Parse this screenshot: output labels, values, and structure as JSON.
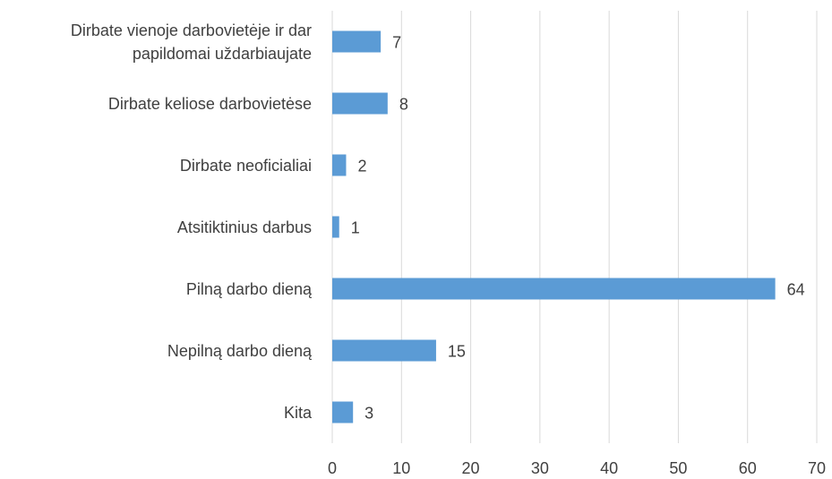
{
  "chart_data": {
    "type": "bar",
    "orientation": "horizontal",
    "categories": [
      "Dirbate vienoje darbovietėje ir dar papildomai uždarbiaujate",
      "Dirbate keliose darbovietėse",
      "Dirbate neoficialiai",
      "Atsitiktinius darbus",
      "Pilną darbo dieną",
      "Nepilną darbo dieną",
      "Kita"
    ],
    "values": [
      7,
      8,
      2,
      1,
      64,
      15,
      3
    ],
    "color": "#5b9bd5",
    "xlim": [
      0,
      70
    ],
    "xticks": [
      0,
      10,
      20,
      30,
      40,
      50,
      60,
      70
    ],
    "grid": true
  }
}
